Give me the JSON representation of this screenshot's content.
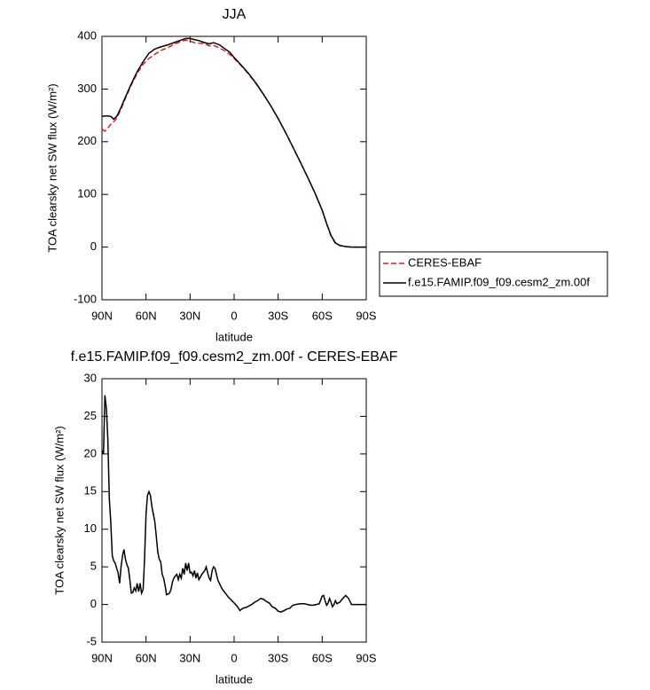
{
  "chart_data": [
    {
      "type": "line",
      "title": "JJA",
      "xlabel": "latitude",
      "ylabel": "TOA clearsky net SW flux (W/m²)",
      "x": [
        90,
        88,
        86,
        84,
        82,
        80,
        77,
        74,
        70,
        66,
        62,
        58,
        54,
        50,
        45,
        40,
        36,
        33,
        30,
        27,
        24,
        20,
        17,
        14,
        10,
        6,
        3,
        0,
        -5,
        -10,
        -15,
        -20,
        -25,
        -30,
        -35,
        -40,
        -45,
        -50,
        -55,
        -60,
        -63,
        -66,
        -69,
        -72,
        -76,
        -80,
        -85,
        -90
      ],
      "series": [
        {
          "name": "CERES-EBAF",
          "color": "#e41a1c",
          "dash": true,
          "values": [
            224,
            220,
            226,
            233,
            238,
            245,
            262,
            283,
            308,
            330,
            347,
            358,
            366,
            373,
            379,
            386,
            390,
            393,
            391,
            388,
            387,
            386,
            382,
            383,
            378,
            372,
            366,
            358,
            344,
            328,
            310,
            290,
            268,
            244,
            218,
            190,
            162,
            133,
            103,
            70,
            44,
            21,
            7,
            3,
            1,
            0,
            0,
            0
          ]
        },
        {
          "name": "f.e15.FAMIP.f09_f09.cesm2_zm.00f",
          "color": "#000000",
          "dash": false,
          "values": [
            248,
            249,
            249,
            248,
            243,
            248,
            265,
            285,
            310,
            333,
            352,
            368,
            376,
            380,
            384,
            389,
            393,
            396,
            396,
            394,
            392,
            388,
            386,
            388,
            384,
            376,
            370,
            360,
            345,
            329,
            311,
            290,
            268,
            244,
            218,
            190,
            162,
            133,
            103,
            70,
            45,
            22,
            8,
            3,
            1,
            0,
            0,
            0
          ]
        }
      ],
      "xlim": [
        90,
        -90
      ],
      "xticks": [
        {
          "value": 90,
          "label": "90N"
        },
        {
          "value": 60,
          "label": "60N"
        },
        {
          "value": 30,
          "label": "30N"
        },
        0,
        {
          "value": -30,
          "label": "30S"
        },
        {
          "value": -60,
          "label": "60S"
        },
        {
          "value": -90,
          "label": "90S"
        }
      ],
      "ylim": [
        -100,
        400
      ],
      "yticks": [
        -100,
        0,
        100,
        200,
        300,
        400
      ],
      "legend": "right"
    },
    {
      "type": "line",
      "title": "f.e15.FAMIP.f09_f09.cesm2_zm.00f - CERES-EBAF",
      "xlabel": "latitude",
      "ylabel": "TOA clearsky net SW flux (W/m²)",
      "x": [
        90,
        89,
        88,
        87,
        86,
        85,
        84,
        83,
        82,
        81,
        80,
        79,
        78,
        77,
        76,
        75,
        74,
        73,
        72,
        71,
        70,
        69,
        68,
        67,
        66,
        65,
        64,
        63,
        62,
        61,
        60,
        59,
        58,
        57,
        56,
        55,
        54,
        53,
        52,
        51,
        50,
        49,
        48,
        47,
        46,
        45,
        44,
        43,
        42,
        41,
        40,
        39,
        38,
        37,
        36,
        35,
        34,
        33,
        32,
        31,
        30,
        29,
        28,
        27,
        26,
        25,
        24,
        22,
        20,
        19,
        18,
        17,
        16,
        15,
        14,
        13,
        12,
        11,
        10,
        8,
        6,
        4,
        2,
        0,
        -2,
        -4,
        -6,
        -8,
        -10,
        -12,
        -14,
        -16,
        -18,
        -20,
        -22,
        -24,
        -26,
        -28,
        -30,
        -32,
        -34,
        -36,
        -38,
        -40,
        -42,
        -45,
        -48,
        -50,
        -52,
        -54,
        -56,
        -58,
        -60,
        -61,
        -62,
        -63,
        -64,
        -65,
        -66,
        -67,
        -68,
        -69,
        -70,
        -72,
        -74,
        -76,
        -78,
        -80,
        -85,
        -90
      ],
      "series": [
        {
          "name": "f.e15.FAMIP.f09_f09.cesm2_zm.00f - CERES-EBAF",
          "color": "#000000",
          "dash": false,
          "values": [
            20.5,
            20,
            27.8,
            26,
            22,
            14,
            11,
            6.5,
            5.8,
            5.5,
            4.8,
            4.2,
            2.8,
            5,
            6.5,
            7.3,
            6,
            5.3,
            4.8,
            3.2,
            1.5,
            1.6,
            2.2,
            1.8,
            2.8,
            1.7,
            2.8,
            1.5,
            2,
            6,
            12,
            14.5,
            15,
            14.5,
            13,
            12,
            11,
            9,
            7,
            6,
            5.7,
            4,
            3.5,
            2.5,
            1.3,
            1.4,
            1.5,
            2,
            3,
            3.5,
            3.8,
            4,
            3.3,
            4,
            3.5,
            4.8,
            4,
            5.5,
            4.5,
            5.5,
            4.2,
            4.3,
            3.8,
            4.5,
            3.5,
            4.2,
            3.3,
            4,
            4.5,
            5,
            4.2,
            3.5,
            3.2,
            4.5,
            5,
            4.8,
            4,
            3.2,
            2.8,
            2,
            1.5,
            1,
            0.6,
            0.2,
            -0.2,
            -0.8,
            -0.5,
            -0.4,
            -0.2,
            0,
            0.3,
            0.5,
            0.8,
            0.7,
            0.4,
            0.2,
            -0.3,
            -0.5,
            -0.9,
            -1,
            -0.8,
            -0.6,
            -0.5,
            -0.1,
            0,
            0.1,
            0.1,
            0,
            -0.1,
            -0.1,
            0,
            0.1,
            1.1,
            1.2,
            0.5,
            -0.1,
            0.2,
            0.8,
            0.3,
            -0.3,
            0,
            0.5,
            0.1,
            0.3,
            0.8,
            1.2,
            0.8,
            0,
            0,
            0
          ]
        }
      ],
      "xlim": [
        90,
        -90
      ],
      "xticks": [
        {
          "value": 90,
          "label": "90N"
        },
        {
          "value": 60,
          "label": "60N"
        },
        {
          "value": 30,
          "label": "30N"
        },
        0,
        {
          "value": -30,
          "label": "30S"
        },
        {
          "value": -60,
          "label": "60S"
        },
        {
          "value": -90,
          "label": "90S"
        }
      ],
      "ylim": [
        -5,
        30
      ],
      "yticks": [
        -5,
        0,
        5,
        10,
        15,
        20,
        25,
        30
      ]
    }
  ]
}
